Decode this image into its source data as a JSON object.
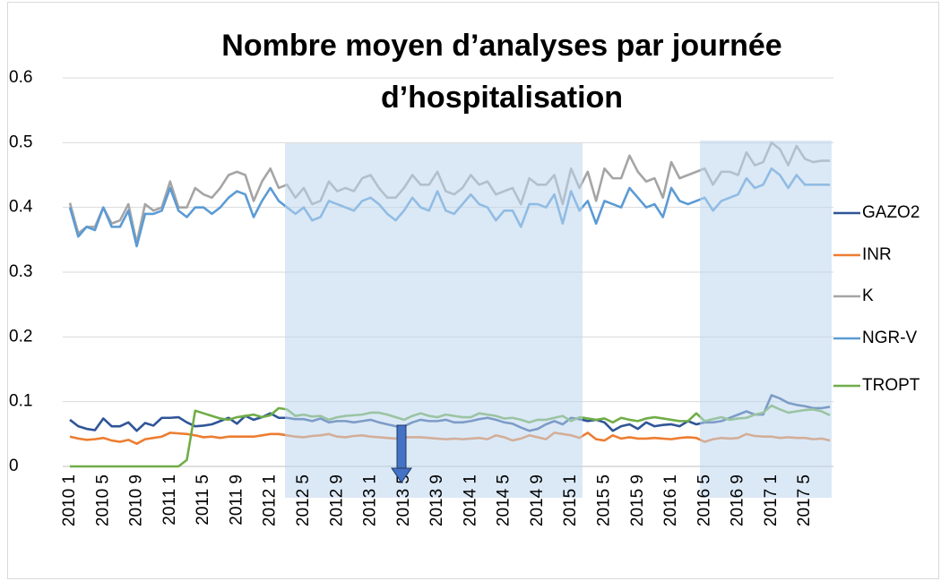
{
  "chart_data": {
    "type": "line",
    "title": "Nombre moyen d’analyses par journée d’hospitalisation",
    "categories": [
      "2010 1",
      null,
      null,
      null,
      "2010 5",
      null,
      null,
      null,
      "2010 9",
      null,
      null,
      null,
      "2011 1",
      null,
      null,
      null,
      "2011 5",
      null,
      null,
      null,
      "2011 9",
      null,
      null,
      null,
      "2012 1",
      null,
      null,
      null,
      "2012 5",
      null,
      null,
      null,
      "2012 9",
      null,
      null,
      null,
      "2013 1",
      null,
      null,
      null,
      "2013 5",
      null,
      null,
      null,
      "2013 9",
      null,
      null,
      null,
      "2014 1",
      null,
      null,
      null,
      "2014 5",
      null,
      null,
      null,
      "2014 9",
      null,
      null,
      null,
      "2015 1",
      null,
      null,
      null,
      "2015 5",
      null,
      null,
      null,
      "2015 9",
      null,
      null,
      null,
      "2016 1",
      null,
      null,
      null,
      "2016 5",
      null,
      null,
      null,
      "2016 9",
      null,
      null,
      null,
      "2017 1",
      null,
      null,
      null,
      "2017 5",
      null,
      null,
      null
    ],
    "series": [
      {
        "name": "GAZO2",
        "color": "#2f5597",
        "values": [
          0.072,
          0.062,
          0.058,
          0.056,
          0.074,
          0.062,
          0.062,
          0.068,
          0.055,
          0.067,
          0.063,
          0.075,
          0.075,
          0.076,
          0.068,
          0.062,
          0.063,
          0.065,
          0.07,
          0.075,
          0.066,
          0.078,
          0.072,
          0.076,
          0.082,
          0.075,
          0.075,
          0.073,
          0.073,
          0.07,
          0.074,
          0.068,
          0.07,
          0.07,
          0.068,
          0.07,
          0.072,
          0.068,
          0.065,
          0.062,
          0.062,
          0.068,
          0.072,
          0.07,
          0.07,
          0.072,
          0.068,
          0.068,
          0.07,
          0.073,
          0.075,
          0.072,
          0.068,
          0.066,
          0.06,
          0.055,
          0.058,
          0.065,
          0.07,
          0.065,
          0.075,
          0.073,
          0.07,
          0.072,
          0.068,
          0.055,
          0.062,
          0.065,
          0.058,
          0.068,
          0.062,
          0.064,
          0.065,
          0.062,
          0.07,
          0.065,
          0.068,
          0.068,
          0.07,
          0.075,
          0.08,
          0.085,
          0.08,
          0.08,
          0.11,
          0.105,
          0.098,
          0.095,
          0.093,
          0.09,
          0.09,
          0.092
        ]
      },
      {
        "name": "INR",
        "color": "#ed7d31",
        "values": [
          0.046,
          0.043,
          0.041,
          0.042,
          0.044,
          0.04,
          0.038,
          0.041,
          0.035,
          0.042,
          0.044,
          0.046,
          0.052,
          0.051,
          0.05,
          0.048,
          0.045,
          0.046,
          0.044,
          0.046,
          0.046,
          0.046,
          0.046,
          0.048,
          0.05,
          0.05,
          0.048,
          0.046,
          0.045,
          0.047,
          0.048,
          0.05,
          0.046,
          0.045,
          0.047,
          0.048,
          0.046,
          0.045,
          0.044,
          0.043,
          0.045,
          0.045,
          0.045,
          0.044,
          0.043,
          0.042,
          0.043,
          0.042,
          0.043,
          0.044,
          0.042,
          0.048,
          0.045,
          0.04,
          0.043,
          0.048,
          0.045,
          0.042,
          0.052,
          0.05,
          0.048,
          0.044,
          0.052,
          0.042,
          0.04,
          0.048,
          0.043,
          0.045,
          0.043,
          0.043,
          0.044,
          0.043,
          0.042,
          0.044,
          0.045,
          0.044,
          0.038,
          0.042,
          0.044,
          0.043,
          0.044,
          0.05,
          0.047,
          0.046,
          0.046,
          0.044,
          0.045,
          0.044,
          0.044,
          0.042,
          0.043,
          0.04
        ]
      },
      {
        "name": "K",
        "color": "#a5a5a5",
        "values": [
          0.407,
          0.36,
          0.37,
          0.37,
          0.4,
          0.375,
          0.38,
          0.405,
          0.345,
          0.405,
          0.395,
          0.4,
          0.44,
          0.4,
          0.4,
          0.43,
          0.42,
          0.415,
          0.43,
          0.45,
          0.455,
          0.45,
          0.41,
          0.44,
          0.46,
          0.43,
          0.435,
          0.415,
          0.43,
          0.405,
          0.41,
          0.44,
          0.425,
          0.43,
          0.425,
          0.445,
          0.45,
          0.43,
          0.415,
          0.415,
          0.43,
          0.45,
          0.435,
          0.435,
          0.455,
          0.425,
          0.42,
          0.43,
          0.45,
          0.435,
          0.44,
          0.42,
          0.425,
          0.43,
          0.405,
          0.445,
          0.435,
          0.435,
          0.45,
          0.405,
          0.46,
          0.43,
          0.455,
          0.41,
          0.46,
          0.445,
          0.445,
          0.48,
          0.455,
          0.44,
          0.445,
          0.415,
          0.47,
          0.445,
          0.45,
          0.455,
          0.46,
          0.435,
          0.455,
          0.455,
          0.45,
          0.485,
          0.465,
          0.47,
          0.5,
          0.49,
          0.465,
          0.495,
          0.475,
          0.47,
          0.472,
          0.472
        ]
      },
      {
        "name": "NGR-V",
        "color": "#5b9bd5",
        "values": [
          0.4,
          0.355,
          0.37,
          0.365,
          0.4,
          0.37,
          0.37,
          0.395,
          0.34,
          0.39,
          0.39,
          0.395,
          0.43,
          0.395,
          0.385,
          0.4,
          0.4,
          0.39,
          0.4,
          0.415,
          0.425,
          0.42,
          0.385,
          0.41,
          0.43,
          0.41,
          0.4,
          0.39,
          0.4,
          0.38,
          0.385,
          0.41,
          0.405,
          0.4,
          0.395,
          0.41,
          0.415,
          0.405,
          0.39,
          0.38,
          0.395,
          0.415,
          0.4,
          0.395,
          0.425,
          0.395,
          0.39,
          0.405,
          0.42,
          0.405,
          0.4,
          0.38,
          0.395,
          0.395,
          0.37,
          0.405,
          0.405,
          0.4,
          0.42,
          0.375,
          0.425,
          0.395,
          0.41,
          0.375,
          0.41,
          0.405,
          0.4,
          0.43,
          0.415,
          0.4,
          0.405,
          0.385,
          0.43,
          0.41,
          0.405,
          0.41,
          0.415,
          0.395,
          0.41,
          0.415,
          0.42,
          0.445,
          0.43,
          0.435,
          0.46,
          0.45,
          0.43,
          0.45,
          0.435,
          0.435,
          0.435,
          0.435
        ]
      },
      {
        "name": "TROPT",
        "color": "#70ad47",
        "values": [
          0,
          0,
          0,
          0,
          0,
          0,
          0,
          0,
          0,
          0,
          0,
          0,
          0,
          0,
          0.01,
          0.086,
          0.082,
          0.078,
          0.074,
          0.072,
          0.076,
          0.078,
          0.08,
          0.076,
          0.079,
          0.09,
          0.088,
          0.078,
          0.08,
          0.077,
          0.078,
          0.072,
          0.076,
          0.078,
          0.079,
          0.08,
          0.083,
          0.083,
          0.08,
          0.076,
          0.072,
          0.078,
          0.082,
          0.078,
          0.076,
          0.08,
          0.078,
          0.076,
          0.076,
          0.082,
          0.08,
          0.078,
          0.074,
          0.075,
          0.072,
          0.068,
          0.072,
          0.072,
          0.075,
          0.078,
          0.07,
          0.076,
          0.074,
          0.072,
          0.074,
          0.068,
          0.075,
          0.072,
          0.07,
          0.074,
          0.076,
          0.074,
          0.072,
          0.07,
          0.07,
          0.082,
          0.07,
          0.073,
          0.076,
          0.072,
          0.074,
          0.075,
          0.08,
          0.083,
          0.094,
          0.088,
          0.083,
          0.085,
          0.087,
          0.088,
          0.085,
          0.079
        ]
      }
    ],
    "ylim": [
      0,
      0.6
    ],
    "yticks": [
      0,
      0.1,
      0.2,
      0.3,
      0.4,
      0.5,
      0.6
    ],
    "grid": true,
    "legend": "right"
  }
}
